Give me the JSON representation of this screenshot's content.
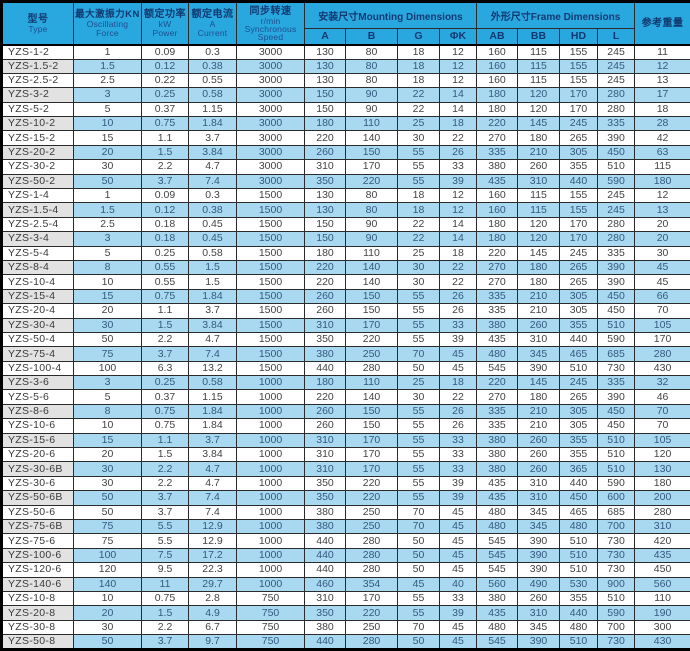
{
  "table": {
    "header": {
      "type_zh": "型号",
      "type_en": "Type",
      "force_zh": "最大激振力KN",
      "force_en1": "Oscillating",
      "force_en2": "Force",
      "power_zh": "额定功率",
      "power_en1": "kW",
      "power_en2": "Power",
      "current_zh": "额定电流",
      "current_en1": "A",
      "current_en2": "Current",
      "speed_zh": "同步转速",
      "speed_en1": "r/min",
      "speed_en2": "Synchronous",
      "speed_en3": "Speed",
      "mounting_group": "安装尺寸Mounting Dimensions",
      "frame_group": "外形尺寸Frame Dimensions",
      "weight_zh": "参考重量",
      "sub": [
        "A",
        "B",
        "G",
        "ΦK",
        "AB",
        "BB",
        "HD",
        "L"
      ]
    },
    "rows": [
      [
        "YZS-1-2",
        "1",
        "0.09",
        "0.3",
        "3000",
        "130",
        "80",
        "18",
        "12",
        "160",
        "115",
        "155",
        "245",
        "11"
      ],
      [
        "YZS-1.5-2",
        "1.5",
        "0.12",
        "0.38",
        "3000",
        "130",
        "80",
        "18",
        "12",
        "160",
        "115",
        "155",
        "245",
        "12"
      ],
      [
        "YZS-2.5-2",
        "2.5",
        "0.22",
        "0.55",
        "3000",
        "130",
        "80",
        "18",
        "12",
        "160",
        "115",
        "155",
        "245",
        "13"
      ],
      [
        "YZS-3-2",
        "3",
        "0.25",
        "0.58",
        "3000",
        "150",
        "90",
        "22",
        "14",
        "180",
        "120",
        "170",
        "280",
        "17"
      ],
      [
        "YZS-5-2",
        "5",
        "0.37",
        "1.15",
        "3000",
        "150",
        "90",
        "22",
        "14",
        "180",
        "120",
        "170",
        "280",
        "18"
      ],
      [
        "YZS-10-2",
        "10",
        "0.75",
        "1.84",
        "3000",
        "180",
        "110",
        "25",
        "18",
        "220",
        "145",
        "245",
        "335",
        "28"
      ],
      [
        "YZS-15-2",
        "15",
        "1.1",
        "3.7",
        "3000",
        "220",
        "140",
        "30",
        "22",
        "270",
        "180",
        "265",
        "390",
        "42"
      ],
      [
        "YZS-20-2",
        "20",
        "1.5",
        "3.84",
        "3000",
        "260",
        "150",
        "55",
        "26",
        "335",
        "210",
        "305",
        "450",
        "63"
      ],
      [
        "YZS-30-2",
        "30",
        "2.2",
        "4.7",
        "3000",
        "310",
        "170",
        "55",
        "33",
        "380",
        "260",
        "355",
        "510",
        "115"
      ],
      [
        "YZS-50-2",
        "50",
        "3.7",
        "7.4",
        "3000",
        "350",
        "220",
        "55",
        "39",
        "435",
        "310",
        "440",
        "590",
        "180"
      ],
      [
        "YZS-1-4",
        "1",
        "0.09",
        "0.3",
        "1500",
        "130",
        "80",
        "18",
        "12",
        "160",
        "115",
        "155",
        "245",
        "12"
      ],
      [
        "YZS-1.5-4",
        "1.5",
        "0.12",
        "0.38",
        "1500",
        "130",
        "80",
        "18",
        "12",
        "160",
        "115",
        "155",
        "245",
        "13"
      ],
      [
        "YZS-2.5-4",
        "2.5",
        "0.18",
        "0.45",
        "1500",
        "150",
        "90",
        "22",
        "14",
        "180",
        "120",
        "170",
        "280",
        "20"
      ],
      [
        "YZS-3-4",
        "3",
        "0.18",
        "0.45",
        "1500",
        "150",
        "90",
        "22",
        "14",
        "180",
        "120",
        "170",
        "280",
        "20"
      ],
      [
        "YZS-5-4",
        "5",
        "0.25",
        "0.58",
        "1500",
        "180",
        "110",
        "25",
        "18",
        "220",
        "145",
        "245",
        "335",
        "30"
      ],
      [
        "YZS-8-4",
        "8",
        "0.55",
        "1.5",
        "1500",
        "220",
        "140",
        "30",
        "22",
        "270",
        "180",
        "265",
        "390",
        "45"
      ],
      [
        "YZS-10-4",
        "10",
        "0.55",
        "1.5",
        "1500",
        "220",
        "140",
        "30",
        "22",
        "270",
        "180",
        "265",
        "390",
        "45"
      ],
      [
        "YZS-15-4",
        "15",
        "0.75",
        "1.84",
        "1500",
        "260",
        "150",
        "55",
        "26",
        "335",
        "210",
        "305",
        "450",
        "66"
      ],
      [
        "YZS-20-4",
        "20",
        "1.1",
        "3.7",
        "1500",
        "260",
        "150",
        "55",
        "26",
        "335",
        "210",
        "305",
        "450",
        "70"
      ],
      [
        "YZS-30-4",
        "30",
        "1.5",
        "3.84",
        "1500",
        "310",
        "170",
        "55",
        "33",
        "380",
        "260",
        "355",
        "510",
        "105"
      ],
      [
        "YZS-50-4",
        "50",
        "2.2",
        "4.7",
        "1500",
        "350",
        "220",
        "55",
        "39",
        "435",
        "310",
        "440",
        "590",
        "170"
      ],
      [
        "YZS-75-4",
        "75",
        "3.7",
        "7.4",
        "1500",
        "380",
        "250",
        "70",
        "45",
        "480",
        "345",
        "465",
        "685",
        "280"
      ],
      [
        "YZS-100-4",
        "100",
        "6.3",
        "13.2",
        "1500",
        "440",
        "280",
        "50",
        "45",
        "545",
        "390",
        "510",
        "730",
        "430"
      ],
      [
        "YZS-3-6",
        "3",
        "0.25",
        "0.58",
        "1000",
        "180",
        "110",
        "25",
        "18",
        "220",
        "145",
        "245",
        "335",
        "32"
      ],
      [
        "YZS-5-6",
        "5",
        "0.37",
        "1.15",
        "1000",
        "220",
        "140",
        "30",
        "22",
        "270",
        "180",
        "265",
        "390",
        "46"
      ],
      [
        "YZS-8-6",
        "8",
        "0.75",
        "1.84",
        "1000",
        "260",
        "150",
        "55",
        "26",
        "335",
        "210",
        "305",
        "450",
        "70"
      ],
      [
        "YZS-10-6",
        "10",
        "0.75",
        "1.84",
        "1000",
        "260",
        "150",
        "55",
        "26",
        "335",
        "210",
        "305",
        "450",
        "70"
      ],
      [
        "YZS-15-6",
        "15",
        "1.1",
        "3.7",
        "1000",
        "310",
        "170",
        "55",
        "33",
        "380",
        "260",
        "355",
        "510",
        "105"
      ],
      [
        "YZS-20-6",
        "20",
        "1.5",
        "3.84",
        "1000",
        "310",
        "170",
        "55",
        "33",
        "380",
        "260",
        "355",
        "510",
        "120"
      ],
      [
        "YZS-30-6B",
        "30",
        "2.2",
        "4.7",
        "1000",
        "310",
        "170",
        "55",
        "33",
        "380",
        "260",
        "365",
        "510",
        "130"
      ],
      [
        "YZS-30-6",
        "30",
        "2.2",
        "4.7",
        "1000",
        "350",
        "220",
        "55",
        "39",
        "435",
        "310",
        "440",
        "590",
        "180"
      ],
      [
        "YZS-50-6B",
        "50",
        "3.7",
        "7.4",
        "1000",
        "350",
        "220",
        "55",
        "39",
        "435",
        "310",
        "450",
        "600",
        "200"
      ],
      [
        "YZS-50-6",
        "50",
        "3.7",
        "7.4",
        "1000",
        "380",
        "250",
        "70",
        "45",
        "480",
        "345",
        "465",
        "685",
        "280"
      ],
      [
        "YZS-75-6B",
        "75",
        "5.5",
        "12.9",
        "1000",
        "380",
        "250",
        "70",
        "45",
        "480",
        "345",
        "480",
        "700",
        "310"
      ],
      [
        "YZS-75-6",
        "75",
        "5.5",
        "12.9",
        "1000",
        "440",
        "280",
        "50",
        "45",
        "545",
        "390",
        "510",
        "730",
        "420"
      ],
      [
        "YZS-100-6",
        "100",
        "7.5",
        "17.2",
        "1000",
        "440",
        "280",
        "50",
        "45",
        "545",
        "390",
        "510",
        "730",
        "435"
      ],
      [
        "YZS-120-6",
        "120",
        "9.5",
        "22.3",
        "1000",
        "440",
        "280",
        "50",
        "45",
        "545",
        "390",
        "510",
        "730",
        "450"
      ],
      [
        "YZS-140-6",
        "140",
        "11",
        "29.7",
        "1000",
        "460",
        "354",
        "45",
        "40",
        "560",
        "490",
        "530",
        "900",
        "560"
      ],
      [
        "YZS-10-8",
        "10",
        "0.75",
        "2.8",
        "750",
        "310",
        "170",
        "55",
        "33",
        "380",
        "260",
        "355",
        "510",
        "110"
      ],
      [
        "YZS-20-8",
        "20",
        "1.5",
        "4.9",
        "750",
        "350",
        "220",
        "55",
        "39",
        "435",
        "310",
        "440",
        "590",
        "190"
      ],
      [
        "YZS-30-8",
        "30",
        "2.2",
        "6.7",
        "750",
        "380",
        "250",
        "70",
        "45",
        "480",
        "345",
        "480",
        "700",
        "300"
      ],
      [
        "YZS-50-8",
        "50",
        "3.7",
        "9.7",
        "750",
        "440",
        "280",
        "50",
        "45",
        "545",
        "390",
        "510",
        "730",
        "430"
      ]
    ]
  },
  "colors": {
    "header_bg": "#29a7df",
    "header_text_zh": "#123a72",
    "header_text_en": "#1d4f90",
    "row_alt_bg": "#a9d8f1",
    "type_alt_bg": "#e2e2e2",
    "border": "#2b2b2b"
  }
}
